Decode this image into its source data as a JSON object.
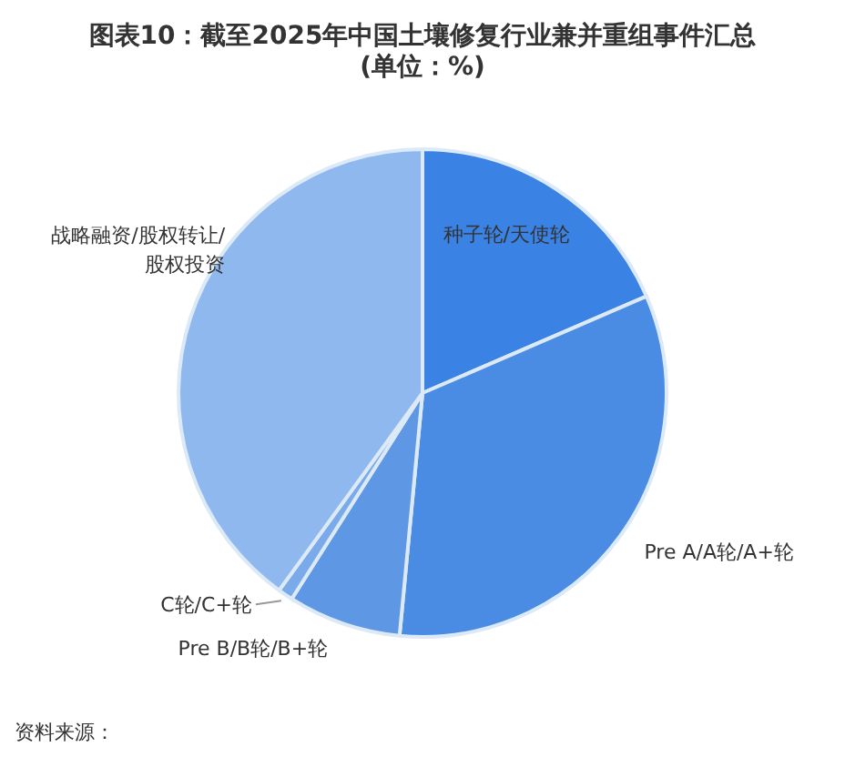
{
  "chart_data": {
    "type": "pie",
    "title": "图表10：截至2025年中国土壤修复行业兼并重组事件汇总\n(单位：%)",
    "categories": [
      "种子轮/天使轮",
      "Pre A/A轮/A+轮",
      "Pre B/B轮/B+轮",
      "C轮/C+轮",
      "战略融资/股权转让/\n股权投资"
    ],
    "values": [
      18.5,
      33,
      7.5,
      1,
      40
    ],
    "colors": [
      "#3a82e4",
      "#4a8be3",
      "#5e97e4",
      "#7aaaea",
      "#8fb8ef"
    ],
    "annotations": [
      "资料来源："
    ]
  }
}
